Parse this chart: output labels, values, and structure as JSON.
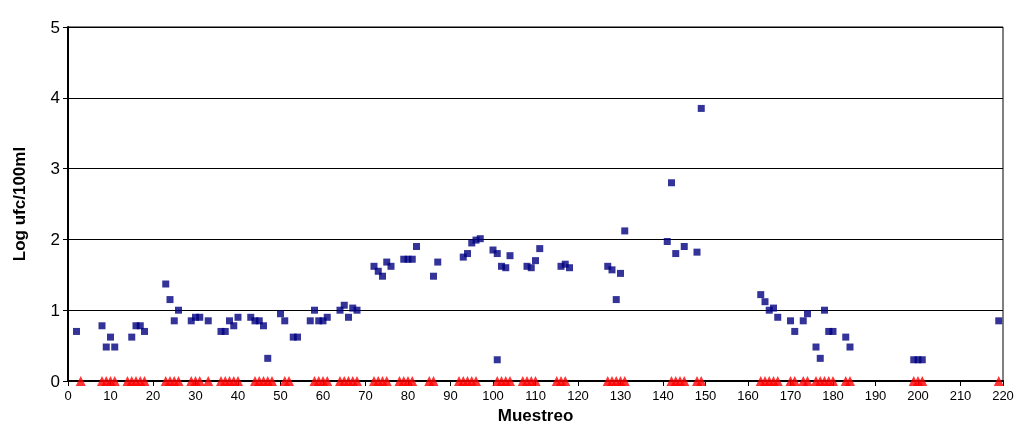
{
  "chart_data": {
    "type": "scatter",
    "xlabel": "Muestreo",
    "ylabel": "Log ufc/100ml",
    "xlim": [
      0,
      220
    ],
    "xticks": [
      0,
      10,
      20,
      30,
      40,
      50,
      60,
      70,
      80,
      90,
      100,
      110,
      120,
      130,
      140,
      150,
      160,
      170,
      180,
      190,
      200,
      210,
      220
    ],
    "ylim": [
      0,
      5
    ],
    "yticks": [
      0,
      1,
      2,
      3,
      4,
      5
    ],
    "grid": "y",
    "series": [
      {
        "color": "#000080",
        "marker": "square",
        "x": [
          2,
          8,
          9,
          10,
          11,
          15,
          16,
          17,
          18,
          23,
          24,
          25,
          26,
          29,
          30,
          31,
          33,
          36,
          37,
          38,
          39,
          40,
          43,
          44,
          45,
          46,
          47,
          50,
          51,
          53,
          54,
          57,
          58,
          59,
          60,
          61,
          64,
          65,
          66,
          67,
          68,
          72,
          73,
          74,
          75,
          76,
          79,
          80,
          81,
          82,
          86,
          87,
          93,
          94,
          95,
          96,
          97,
          100,
          101,
          101,
          102,
          103,
          104,
          108,
          109,
          110,
          111,
          116,
          117,
          118,
          127,
          128,
          129,
          130,
          131,
          141,
          142,
          143,
          145,
          148,
          149,
          163,
          164,
          165,
          166,
          167,
          170,
          171,
          173,
          174,
          176,
          177,
          178,
          179,
          180,
          183,
          184,
          199,
          200,
          201,
          219
        ],
        "values": [
          0.7,
          0.78,
          0.48,
          0.62,
          0.48,
          0.62,
          0.78,
          0.78,
          0.7,
          1.37,
          1.15,
          0.85,
          1.0,
          0.85,
          0.9,
          0.9,
          0.85,
          0.7,
          0.7,
          0.85,
          0.78,
          0.9,
          0.9,
          0.85,
          0.85,
          0.78,
          0.32,
          0.95,
          0.85,
          0.62,
          0.62,
          0.85,
          1.0,
          0.85,
          0.85,
          0.9,
          1.0,
          1.07,
          0.9,
          1.03,
          1.0,
          1.62,
          1.55,
          1.48,
          1.68,
          1.62,
          1.72,
          1.72,
          1.72,
          1.9,
          1.48,
          1.68,
          1.75,
          1.8,
          1.95,
          1.99,
          2.01,
          1.85,
          1.8,
          0.3,
          1.62,
          1.6,
          1.77,
          1.62,
          1.6,
          1.7,
          1.87,
          1.62,
          1.65,
          1.6,
          1.62,
          1.57,
          1.15,
          1.52,
          2.12,
          1.97,
          2.8,
          1.8,
          1.9,
          1.82,
          3.85,
          1.22,
          1.12,
          1.0,
          1.03,
          0.9,
          0.85,
          0.7,
          0.85,
          0.95,
          0.48,
          0.32,
          1.0,
          0.7,
          0.7,
          0.62,
          0.48,
          0.3,
          0.3,
          0.3,
          0.85
        ]
      },
      {
        "color": "#ff0000",
        "marker": "triangle",
        "x": [
          3,
          8,
          9,
          10,
          11,
          14,
          15,
          16,
          17,
          18,
          23,
          24,
          25,
          26,
          29,
          30,
          31,
          33,
          36,
          37,
          38,
          39,
          40,
          44,
          45,
          46,
          47,
          48,
          51,
          52,
          58,
          59,
          60,
          61,
          64,
          65,
          66,
          67,
          68,
          72,
          73,
          74,
          75,
          78,
          79,
          80,
          81,
          85,
          86,
          92,
          93,
          94,
          95,
          96,
          101,
          102,
          103,
          104,
          107,
          108,
          109,
          110,
          115,
          116,
          117,
          127,
          128,
          129,
          130,
          131,
          142,
          143,
          144,
          145,
          148,
          149,
          163,
          164,
          165,
          166,
          167,
          170,
          171,
          173,
          174,
          176,
          177,
          178,
          179,
          180,
          183,
          184,
          199,
          200,
          201,
          219
        ],
        "values": [
          0,
          0,
          0,
          0,
          0,
          0,
          0,
          0,
          0,
          0,
          0,
          0,
          0,
          0,
          0,
          0,
          0,
          0,
          0,
          0,
          0,
          0,
          0,
          0,
          0,
          0,
          0,
          0,
          0,
          0,
          0,
          0,
          0,
          0,
          0,
          0,
          0,
          0,
          0,
          0,
          0,
          0,
          0,
          0,
          0,
          0,
          0,
          0,
          0,
          0,
          0,
          0,
          0,
          0,
          0,
          0,
          0,
          0,
          0,
          0,
          0,
          0,
          0,
          0,
          0,
          0,
          0,
          0,
          0,
          0,
          0,
          0,
          0,
          0,
          0,
          0,
          0,
          0,
          0,
          0,
          0,
          0,
          0,
          0,
          0,
          0,
          0,
          0,
          0,
          0,
          0,
          0,
          0,
          0,
          0,
          0
        ]
      }
    ]
  }
}
